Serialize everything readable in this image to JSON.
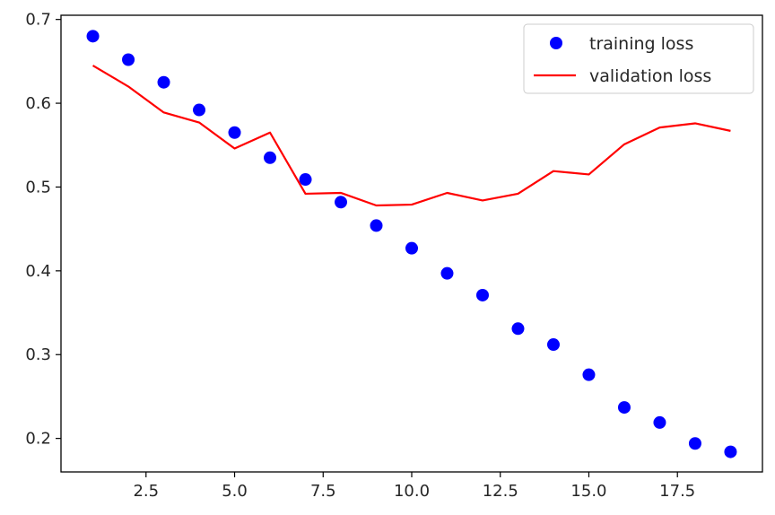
{
  "chart_data": {
    "type": "line",
    "title": "",
    "xlabel": "",
    "ylabel": "",
    "xlim": [
      0.1,
      19.9
    ],
    "ylim": [
      0.16,
      0.705
    ],
    "x_ticks": [
      2.5,
      5.0,
      7.5,
      10.0,
      12.5,
      15.0,
      17.5
    ],
    "x_tick_labels": [
      "2.5",
      "5.0",
      "7.5",
      "10.0",
      "12.5",
      "15.0",
      "17.5"
    ],
    "y_ticks": [
      0.2,
      0.3,
      0.4,
      0.5,
      0.6,
      0.7
    ],
    "y_tick_labels": [
      "0.2",
      "0.3",
      "0.4",
      "0.5",
      "0.6",
      "0.7"
    ],
    "grid": false,
    "legend_position": "top-right",
    "x": [
      1,
      2,
      3,
      4,
      5,
      6,
      7,
      8,
      9,
      10,
      11,
      12,
      13,
      14,
      15,
      16,
      17,
      18,
      19
    ],
    "series": [
      {
        "name": "training loss",
        "style": "scatter",
        "color": "#0000ff",
        "values": [
          0.68,
          0.652,
          0.625,
          0.592,
          0.565,
          0.535,
          0.509,
          0.482,
          0.454,
          0.427,
          0.397,
          0.371,
          0.331,
          0.312,
          0.276,
          0.237,
          0.219,
          0.194,
          0.184
        ]
      },
      {
        "name": "validation loss",
        "style": "line",
        "color": "#ff0000",
        "values": [
          0.645,
          0.62,
          0.589,
          0.577,
          0.546,
          0.565,
          0.492,
          0.493,
          0.478,
          0.479,
          0.493,
          0.484,
          0.492,
          0.519,
          0.515,
          0.551,
          0.571,
          0.576,
          0.567
        ]
      }
    ]
  }
}
